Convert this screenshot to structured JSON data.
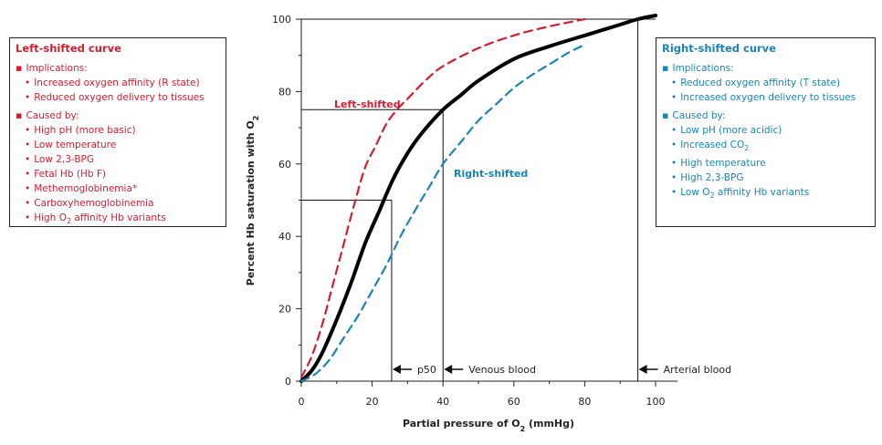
{
  "colors": {
    "left": "#d21f2f",
    "right": "#1a84b6",
    "normal": "#000000"
  },
  "left_box": {
    "title": "Left-shifted curve",
    "sections": [
      {
        "heading": "Implications:",
        "items": [
          "Increased oxygen affinity (R state)",
          "Reduced oxygen delivery to tissues"
        ]
      },
      {
        "heading": "Caused by:",
        "items": [
          "High pH (more basic)",
          "Low temperature",
          "Low 2,3-BPG",
          "Fetal Hb (Hb F)",
          "Methemoglobinemia*",
          "Carboxyhemoglobinemia",
          "High O2 affinity Hb variants"
        ]
      }
    ]
  },
  "right_box": {
    "title": "Right-shifted curve",
    "sections": [
      {
        "heading": "Implications:",
        "items": [
          "Reduced oxygen affinity (T state)",
          "Increased oxygen delivery to tissues"
        ]
      },
      {
        "heading": "Caused by:",
        "items": [
          "Low pH (more acidic)",
          "Increased CO2",
          "High temperature",
          "High 2,3-BPG",
          "Low O2 affinity Hb variants"
        ]
      }
    ]
  },
  "chart_data": {
    "type": "line",
    "xlabel": "Partial pressure of O2 (mmHg)",
    "ylabel": "Percent Hb saturation with O2",
    "xlim": [
      0,
      100
    ],
    "ylim": [
      0,
      100
    ],
    "xticks": [
      0,
      20,
      40,
      60,
      80,
      100
    ],
    "yticks": [
      0,
      20,
      40,
      60,
      80,
      100
    ],
    "grid": false,
    "series": [
      {
        "name": "Left-shifted",
        "style": "dashed",
        "x": [
          0,
          3,
          6,
          9,
          12,
          15,
          18,
          21,
          24,
          27,
          30,
          35,
          40,
          50,
          60,
          70,
          80
        ],
        "y": [
          1,
          7,
          16,
          27,
          38,
          49,
          59,
          65,
          71,
          75,
          78,
          83,
          87,
          92,
          95.5,
          98,
          100
        ]
      },
      {
        "style": "solid",
        "x": [
          0,
          3,
          6,
          10,
          14,
          18,
          22,
          26,
          30,
          34,
          40,
          45,
          50,
          60,
          70,
          80,
          90,
          95,
          100
        ],
        "y": [
          0,
          3,
          8,
          17,
          27,
          38,
          47,
          56,
          63,
          68.5,
          75,
          79,
          83,
          89,
          92.5,
          95.5,
          98.5,
          100,
          101
        ]
      },
      {
        "name": "Right-shifted",
        "style": "dashed",
        "x": [
          0,
          4,
          8,
          12,
          16,
          20,
          24,
          28,
          32,
          36,
          40,
          45,
          50,
          55,
          60,
          65,
          70,
          75,
          80
        ],
        "y": [
          0,
          2,
          6,
          12,
          18,
          25,
          32,
          40,
          47,
          53.5,
          60,
          66,
          72,
          76.5,
          81,
          84.5,
          87.5,
          90.5,
          93
        ]
      }
    ],
    "reference_lines": [
      {
        "x": 25.5,
        "y": 50
      },
      {
        "x": 40,
        "y": 75
      },
      {
        "x": 95,
        "y": 100
      }
    ],
    "annotations": [
      {
        "label": "p50",
        "x": 25.5
      },
      {
        "label": "Venous blood",
        "x": 40
      },
      {
        "label": "Arterial blood",
        "x": 95
      }
    ]
  }
}
